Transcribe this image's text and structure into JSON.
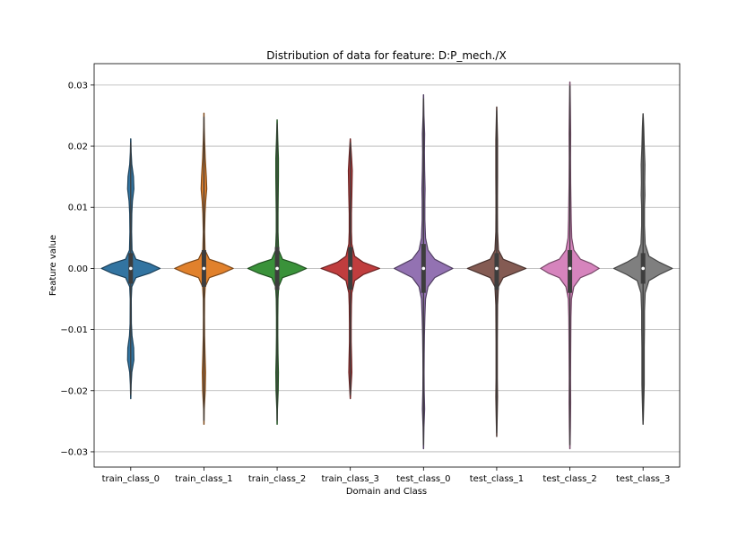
{
  "chart_data": {
    "type": "violin",
    "title": "Distribution of data for feature: D:P_mech./X",
    "xlabel": "Domain and Class",
    "ylabel": "Feature value",
    "ylim": [
      -0.0325,
      0.0335
    ],
    "yticks": [
      -0.03,
      -0.02,
      -0.01,
      0.0,
      0.01,
      0.02,
      0.03
    ],
    "ytick_labels": [
      "−0.03",
      "−0.02",
      "−0.01",
      "0.00",
      "0.01",
      "0.02",
      "0.03"
    ],
    "grid": "horizontal",
    "categories": [
      "train_class_0",
      "train_class_1",
      "train_class_2",
      "train_class_3",
      "test_class_0",
      "test_class_1",
      "test_class_2",
      "test_class_3"
    ],
    "colors": [
      "#3274a1",
      "#e1812c",
      "#3a923a",
      "#c03d3e",
      "#9372b2",
      "#845b53",
      "#d684bd",
      "#7f7f7f"
    ],
    "series": [
      {
        "min": -0.0213,
        "max": 0.0212,
        "median": 0.0,
        "q1": -0.0025,
        "q3": 0.0025,
        "profile": [
          [
            -0.0213,
            0.001
          ],
          [
            -0.019,
            0.004
          ],
          [
            -0.017,
            0.01
          ],
          [
            -0.015,
            0.03
          ],
          [
            -0.013,
            0.028
          ],
          [
            -0.011,
            0.012
          ],
          [
            -0.009,
            0.006
          ],
          [
            -0.005,
            0.005
          ],
          [
            -0.003,
            0.01
          ],
          [
            -0.0015,
            0.05
          ],
          [
            -0.0008,
            0.18
          ],
          [
            0.0,
            0.28
          ],
          [
            0.0008,
            0.18
          ],
          [
            0.0015,
            0.05
          ],
          [
            0.003,
            0.012
          ],
          [
            0.006,
            0.008
          ],
          [
            0.009,
            0.01
          ],
          [
            0.011,
            0.016
          ],
          [
            0.013,
            0.03
          ],
          [
            0.015,
            0.026
          ],
          [
            0.017,
            0.01
          ],
          [
            0.019,
            0.004
          ],
          [
            0.0212,
            0.001
          ]
        ]
      },
      {
        "min": -0.0255,
        "max": 0.0254,
        "median": 0.0,
        "q1": -0.003,
        "q3": 0.003,
        "profile": [
          [
            -0.0255,
            0.001
          ],
          [
            -0.023,
            0.003
          ],
          [
            -0.02,
            0.012
          ],
          [
            -0.017,
            0.015
          ],
          [
            -0.014,
            0.01
          ],
          [
            -0.011,
            0.006
          ],
          [
            -0.008,
            0.005
          ],
          [
            -0.005,
            0.006
          ],
          [
            -0.003,
            0.012
          ],
          [
            -0.0015,
            0.05
          ],
          [
            -0.0008,
            0.17
          ],
          [
            0.0,
            0.27
          ],
          [
            0.0008,
            0.17
          ],
          [
            0.0015,
            0.05
          ],
          [
            0.003,
            0.01
          ],
          [
            0.006,
            0.006
          ],
          [
            0.009,
            0.01
          ],
          [
            0.011,
            0.016
          ],
          [
            0.013,
            0.026
          ],
          [
            0.015,
            0.022
          ],
          [
            0.018,
            0.012
          ],
          [
            0.021,
            0.006
          ],
          [
            0.023,
            0.003
          ],
          [
            0.0254,
            0.001
          ]
        ]
      },
      {
        "min": -0.0255,
        "max": 0.0243,
        "median": 0.0,
        "q1": -0.0035,
        "q3": 0.0035,
        "profile": [
          [
            -0.0255,
            0.001
          ],
          [
            -0.023,
            0.003
          ],
          [
            -0.02,
            0.01
          ],
          [
            -0.017,
            0.012
          ],
          [
            -0.014,
            0.008
          ],
          [
            -0.011,
            0.006
          ],
          [
            -0.008,
            0.006
          ],
          [
            -0.005,
            0.008
          ],
          [
            -0.003,
            0.014
          ],
          [
            -0.0015,
            0.05
          ],
          [
            -0.0008,
            0.17
          ],
          [
            0.0,
            0.27
          ],
          [
            0.0008,
            0.17
          ],
          [
            0.0015,
            0.05
          ],
          [
            0.003,
            0.014
          ],
          [
            0.006,
            0.008
          ],
          [
            0.009,
            0.008
          ],
          [
            0.012,
            0.01
          ],
          [
            0.015,
            0.012
          ],
          [
            0.018,
            0.012
          ],
          [
            0.021,
            0.006
          ],
          [
            0.0243,
            0.001
          ]
        ]
      },
      {
        "min": -0.0213,
        "max": 0.0212,
        "median": 0.0,
        "q1": -0.0035,
        "q3": 0.0035,
        "profile": [
          [
            -0.0213,
            0.001
          ],
          [
            -0.019,
            0.008
          ],
          [
            -0.017,
            0.014
          ],
          [
            -0.015,
            0.012
          ],
          [
            -0.012,
            0.008
          ],
          [
            -0.009,
            0.008
          ],
          [
            -0.006,
            0.01
          ],
          [
            -0.004,
            0.014
          ],
          [
            -0.002,
            0.04
          ],
          [
            -0.001,
            0.12
          ],
          [
            0.0,
            0.27
          ],
          [
            0.001,
            0.12
          ],
          [
            0.002,
            0.04
          ],
          [
            0.004,
            0.014
          ],
          [
            0.006,
            0.01
          ],
          [
            0.009,
            0.01
          ],
          [
            0.012,
            0.014
          ],
          [
            0.014,
            0.016
          ],
          [
            0.016,
            0.018
          ],
          [
            0.018,
            0.012
          ],
          [
            0.0212,
            0.001
          ]
        ]
      },
      {
        "min": -0.0295,
        "max": 0.0284,
        "median": 0.0,
        "q1": -0.004,
        "q3": 0.004,
        "profile": [
          [
            -0.0295,
            0.001
          ],
          [
            -0.026,
            0.004
          ],
          [
            -0.023,
            0.01
          ],
          [
            -0.02,
            0.006
          ],
          [
            -0.017,
            0.005
          ],
          [
            -0.014,
            0.006
          ],
          [
            -0.011,
            0.008
          ],
          [
            -0.008,
            0.012
          ],
          [
            -0.005,
            0.018
          ],
          [
            -0.003,
            0.04
          ],
          [
            -0.0015,
            0.1
          ],
          [
            0.0,
            0.26
          ],
          [
            0.0015,
            0.1
          ],
          [
            0.003,
            0.04
          ],
          [
            0.005,
            0.018
          ],
          [
            0.008,
            0.012
          ],
          [
            0.011,
            0.012
          ],
          [
            0.013,
            0.014
          ],
          [
            0.016,
            0.01
          ],
          [
            0.019,
            0.008
          ],
          [
            0.022,
            0.01
          ],
          [
            0.025,
            0.004
          ],
          [
            0.0284,
            0.001
          ]
        ]
      },
      {
        "min": -0.0275,
        "max": 0.0264,
        "median": 0.0,
        "q1": -0.0035,
        "q3": 0.0025,
        "profile": [
          [
            -0.0275,
            0.001
          ],
          [
            -0.024,
            0.005
          ],
          [
            -0.021,
            0.008
          ],
          [
            -0.018,
            0.006
          ],
          [
            -0.015,
            0.006
          ],
          [
            -0.012,
            0.006
          ],
          [
            -0.009,
            0.007
          ],
          [
            -0.006,
            0.008
          ],
          [
            -0.003,
            0.016
          ],
          [
            -0.0015,
            0.06
          ],
          [
            -0.0008,
            0.16
          ],
          [
            0.0,
            0.27
          ],
          [
            0.0008,
            0.16
          ],
          [
            0.0015,
            0.06
          ],
          [
            0.003,
            0.016
          ],
          [
            0.006,
            0.008
          ],
          [
            0.009,
            0.007
          ],
          [
            0.012,
            0.007
          ],
          [
            0.015,
            0.008
          ],
          [
            0.018,
            0.008
          ],
          [
            0.021,
            0.008
          ],
          [
            0.024,
            0.004
          ],
          [
            0.0264,
            0.001
          ]
        ]
      },
      {
        "min": -0.0295,
        "max": 0.0305,
        "median": 0.0,
        "q1": -0.004,
        "q3": 0.003,
        "profile": [
          [
            -0.0295,
            0.001
          ],
          [
            -0.026,
            0.004
          ],
          [
            -0.022,
            0.006
          ],
          [
            -0.018,
            0.005
          ],
          [
            -0.014,
            0.006
          ],
          [
            -0.011,
            0.007
          ],
          [
            -0.008,
            0.008
          ],
          [
            -0.005,
            0.012
          ],
          [
            -0.003,
            0.03
          ],
          [
            -0.0015,
            0.08
          ],
          [
            -0.0008,
            0.16
          ],
          [
            0.0,
            0.22
          ],
          [
            0.0008,
            0.16
          ],
          [
            0.0015,
            0.08
          ],
          [
            0.003,
            0.03
          ],
          [
            0.005,
            0.014
          ],
          [
            0.008,
            0.01
          ],
          [
            0.011,
            0.008
          ],
          [
            0.014,
            0.006
          ],
          [
            0.018,
            0.005
          ],
          [
            0.022,
            0.006
          ],
          [
            0.026,
            0.004
          ],
          [
            0.0305,
            0.001
          ]
        ]
      },
      {
        "min": -0.0255,
        "max": 0.0253,
        "median": 0.0,
        "q1": -0.0025,
        "q3": 0.0025,
        "profile": [
          [
            -0.0255,
            0.001
          ],
          [
            -0.022,
            0.006
          ],
          [
            -0.019,
            0.01
          ],
          [
            -0.016,
            0.01
          ],
          [
            -0.013,
            0.01
          ],
          [
            -0.01,
            0.012
          ],
          [
            -0.007,
            0.012
          ],
          [
            -0.004,
            0.018
          ],
          [
            -0.002,
            0.05
          ],
          [
            -0.001,
            0.14
          ],
          [
            0.0,
            0.25
          ],
          [
            0.001,
            0.14
          ],
          [
            0.002,
            0.05
          ],
          [
            0.004,
            0.018
          ],
          [
            0.007,
            0.012
          ],
          [
            0.01,
            0.012
          ],
          [
            0.012,
            0.016
          ],
          [
            0.014,
            0.014
          ],
          [
            0.017,
            0.016
          ],
          [
            0.02,
            0.01
          ],
          [
            0.023,
            0.006
          ],
          [
            0.0253,
            0.001
          ]
        ]
      }
    ]
  }
}
